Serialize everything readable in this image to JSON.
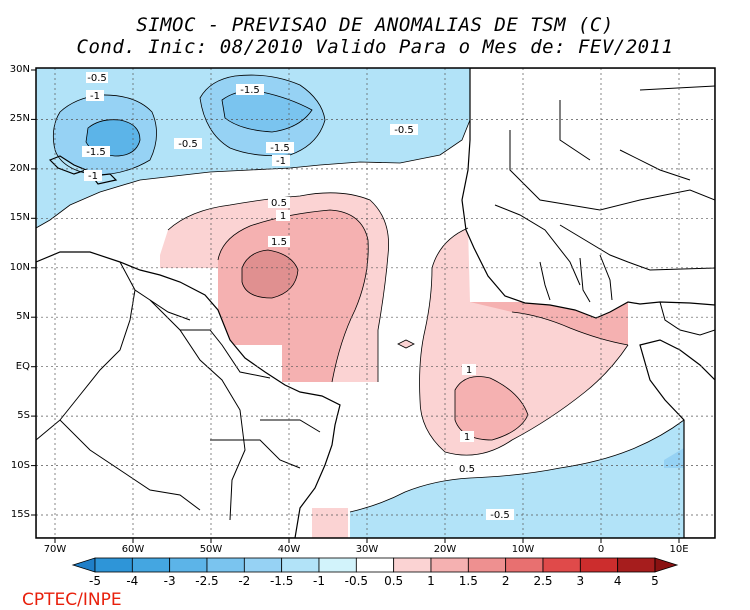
{
  "title": {
    "line1": "SIMOC - PREVISAO DE ANOMALIAS DE TSM (C)",
    "line2": "Cond. Inic: 08/2010   Valido Para o Mes de: FEV/2011"
  },
  "latitude_labels": [
    "30N",
    "25N",
    "20N",
    "15N",
    "10N",
    "5N",
    "EQ",
    "5S",
    "10S",
    "15S"
  ],
  "longitude_labels": [
    "70W",
    "60W",
    "50W",
    "40W",
    "30W",
    "20W",
    "10W",
    "0",
    "10E"
  ],
  "contour_labels": {
    "neg_05": "-0.5",
    "neg_1": "-1",
    "neg_15": "-1.5",
    "pos_05": "0.5",
    "pos_1": "1",
    "pos_15": "1.5"
  },
  "colorbar": {
    "labels": [
      "-5",
      "-4",
      "-3",
      "-2.5",
      "-2",
      "-1.5",
      "-1",
      "-0.5",
      "0.5",
      "1",
      "1.5",
      "2",
      "2.5",
      "3",
      "4",
      "5"
    ],
    "colors": [
      "#1f7fc8",
      "#2e95d8",
      "#44a6e1",
      "#5cb4e8",
      "#7ac4ef",
      "#96d2f4",
      "#b2e3f8",
      "#d2f3fb",
      "#ffffff",
      "#fbd3d3",
      "#f5b1b1",
      "#ee9090",
      "#e87070",
      "#e04a4a",
      "#cc2d2d",
      "#a61d1d",
      "#8a1212"
    ]
  },
  "credit": "CPTEC/INPE"
}
